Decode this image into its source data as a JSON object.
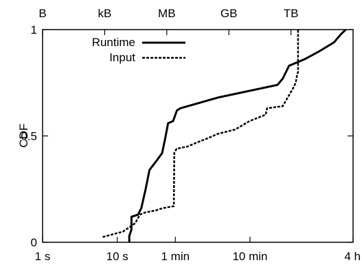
{
  "chart_data": {
    "type": "line",
    "title": "",
    "ylabel": "CDF",
    "ylim": [
      0,
      1
    ],
    "y_ticks": [
      {
        "v": 0,
        "label": "0"
      },
      {
        "v": 0.5,
        "label": "0.5"
      },
      {
        "v": 1,
        "label": "1"
      }
    ],
    "x_bottom": {
      "scale": "log",
      "unit": "seconds",
      "range": [
        1,
        14400
      ],
      "ticks": [
        {
          "v": 1,
          "label": "1 s"
        },
        {
          "v": 10,
          "label": "10 s"
        },
        {
          "v": 60,
          "label": "1 min"
        },
        {
          "v": 600,
          "label": "10 min"
        },
        {
          "v": 14400,
          "label": "4 h"
        }
      ]
    },
    "x_top": {
      "scale": "log",
      "unit": "bytes",
      "range": [
        1,
        1000000000000000.0
      ],
      "ticks": [
        {
          "v": 1,
          "label": "B"
        },
        {
          "v": 1000.0,
          "label": "kB"
        },
        {
          "v": 1000000.0,
          "label": "MB"
        },
        {
          "v": 1000000000.0,
          "label": "GB"
        },
        {
          "v": 1000000000000.0,
          "label": "TB"
        }
      ]
    },
    "legend_position": "top-left",
    "series": [
      {
        "name": "Runtime",
        "axis": "bottom",
        "style": "solid",
        "points": [
          [
            14.5,
            0.0
          ],
          [
            14.5,
            0.03
          ],
          [
            15.5,
            0.06
          ],
          [
            15.5,
            0.12
          ],
          [
            19,
            0.13
          ],
          [
            21,
            0.16
          ],
          [
            24,
            0.25
          ],
          [
            27,
            0.34
          ],
          [
            33,
            0.38
          ],
          [
            40,
            0.42
          ],
          [
            44,
            0.49
          ],
          [
            48,
            0.56
          ],
          [
            56,
            0.57
          ],
          [
            63,
            0.62
          ],
          [
            70,
            0.63
          ],
          [
            220,
            0.68
          ],
          [
            1400,
            0.74
          ],
          [
            1650,
            0.77
          ],
          [
            2000,
            0.83
          ],
          [
            3200,
            0.86
          ],
          [
            5200,
            0.9
          ],
          [
            8000,
            0.94
          ],
          [
            10000,
            0.98
          ],
          [
            11500,
            1.0
          ]
        ]
      },
      {
        "name": "Input",
        "axis": "top",
        "style": "dashed",
        "points": [
          [
            800,
            0.025
          ],
          [
            7500,
            0.05
          ],
          [
            30000,
            0.09
          ],
          [
            50000,
            0.13
          ],
          [
            90000,
            0.14
          ],
          [
            300000,
            0.15
          ],
          [
            600000,
            0.16
          ],
          [
            2200000,
            0.17
          ],
          [
            2300000,
            0.42
          ],
          [
            3000000,
            0.44
          ],
          [
            10000000,
            0.45
          ],
          [
            30000000,
            0.47
          ],
          [
            100000000,
            0.49
          ],
          [
            300000000,
            0.51
          ],
          [
            2000000000,
            0.53
          ],
          [
            10000000000,
            0.57
          ],
          [
            60000000000,
            0.6
          ],
          [
            70000000000,
            0.63
          ],
          [
            400000000000,
            0.64
          ],
          [
            600000000000,
            0.67
          ],
          [
            1200000000000,
            0.72
          ],
          [
            1700000000000,
            0.75
          ],
          [
            2000000000000,
            0.79
          ],
          [
            2200000000000,
            0.8
          ],
          [
            2200000000000,
            1.0
          ]
        ]
      }
    ]
  }
}
